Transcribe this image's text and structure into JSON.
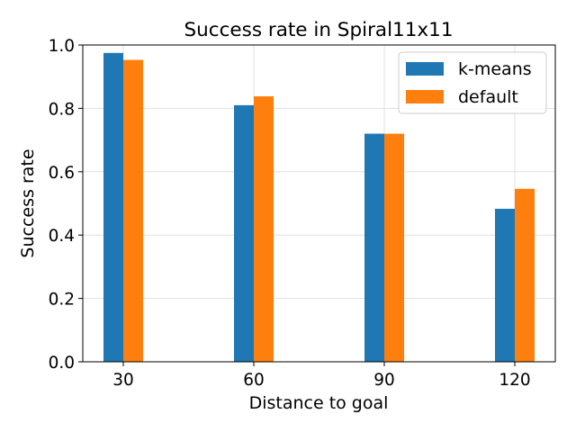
{
  "chart_data": {
    "type": "bar",
    "title": "Success rate in Spiral11x11",
    "xlabel": "Distance to goal",
    "ylabel": "Success rate",
    "categories": [
      "30",
      "60",
      "90",
      "120"
    ],
    "series": [
      {
        "name": "k-means",
        "color": "#1f77b4",
        "values": [
          0.975,
          0.81,
          0.72,
          0.483
        ]
      },
      {
        "name": "default",
        "color": "#ff7f0e",
        "values": [
          0.953,
          0.838,
          0.72,
          0.546
        ]
      }
    ],
    "ylim": [
      0,
      1.0
    ],
    "yticks": [
      "0.0",
      "0.2",
      "0.4",
      "0.6",
      "0.8",
      "1.0"
    ],
    "grid": true,
    "legend": "top-right"
  }
}
